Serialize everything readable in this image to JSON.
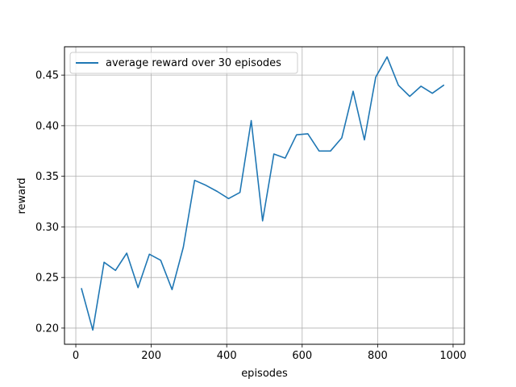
{
  "chart_data": {
    "type": "line",
    "title": "",
    "xlabel": "episodes",
    "ylabel": "reward",
    "xlim": [
      -30,
      1030
    ],
    "ylim": [
      0.184,
      0.478
    ],
    "grid": true,
    "legend_placement": "top-left",
    "x_ticks": [
      0,
      200,
      400,
      600,
      800,
      1000
    ],
    "x_tick_labels": [
      "0",
      "200",
      "400",
      "600",
      "800",
      "1000"
    ],
    "y_ticks": [
      0.2,
      0.25,
      0.3,
      0.35,
      0.4,
      0.45
    ],
    "y_tick_labels": [
      "0.20",
      "0.25",
      "0.30",
      "0.35",
      "0.40",
      "0.45"
    ],
    "series": [
      {
        "name": "average reward over 30 episodes",
        "color": "#1f77b4",
        "x": [
          15,
          45,
          75,
          105,
          135,
          165,
          195,
          225,
          255,
          285,
          315,
          345,
          375,
          405,
          435,
          465,
          495,
          525,
          555,
          585,
          615,
          645,
          675,
          705,
          735,
          765,
          795,
          825,
          855,
          885,
          915,
          945,
          975
        ],
        "y": [
          0.239,
          0.198,
          0.265,
          0.257,
          0.274,
          0.24,
          0.273,
          0.267,
          0.238,
          0.28,
          0.346,
          0.341,
          0.335,
          0.328,
          0.334,
          0.405,
          0.306,
          0.372,
          0.368,
          0.391,
          0.392,
          0.375,
          0.375,
          0.388,
          0.434,
          0.386,
          0.448,
          0.468,
          0.44,
          0.429,
          0.439,
          0.432,
          0.44
        ]
      }
    ]
  }
}
